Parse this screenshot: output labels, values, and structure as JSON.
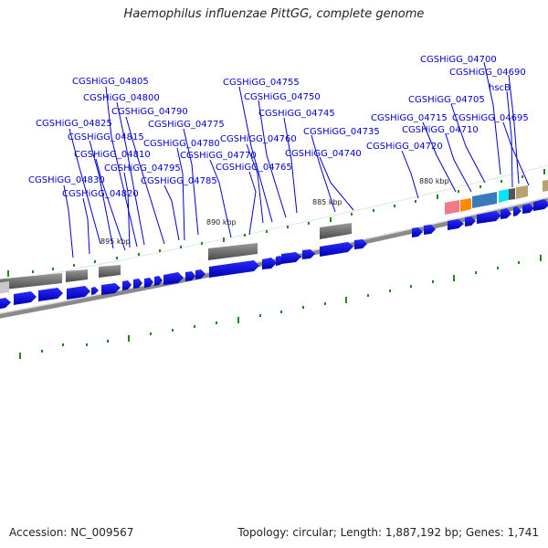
{
  "title": "Haemophilus influenzae PittGG, complete genome",
  "footer": {
    "accession": "Accession: NC_009567",
    "summary": "Topology: circular; Length: 1,887,192 bp; Genes: 1,741"
  },
  "scale_labels": [
    "895 kbp",
    "890 kbp",
    "885 kbp",
    "880 kbp"
  ],
  "gene_labels": [
    "CGSHiGG_04700",
    "CGSHiGG_04690",
    "hscB",
    "CGSHiGG_04705",
    "CGSHiGG_04695",
    "CGSHiGG_04715",
    "CGSHiGG_04710",
    "CGSHiGG_04720",
    "CGSHiGG_04755",
    "CGSHiGG_04750",
    "CGSHiGG_04745",
    "CGSHiGG_04735",
    "CGSHiGG_04760",
    "CGSHiGG_04740",
    "CGSHiGG_04770",
    "CGSHiGG_04765",
    "CGSHiGG_04805",
    "CGSHiGG_04800",
    "CGSHiGG_04790",
    "CGSHiGG_04775",
    "CGSHiGG_04825",
    "CGSHiGG_04815",
    "CGSHiGG_04780",
    "CGSHiGG_04810",
    "CGSHiGG_04795",
    "CGSHiGG_04785",
    "CGSHiGG_04830",
    "CGSHiGG_04820"
  ],
  "colors": {
    "gene_label": "#0000cc",
    "cds": "#0000ee",
    "rna_block": "#707070",
    "backbone": "#8a8a8a",
    "tick": "#1a8a1a"
  }
}
